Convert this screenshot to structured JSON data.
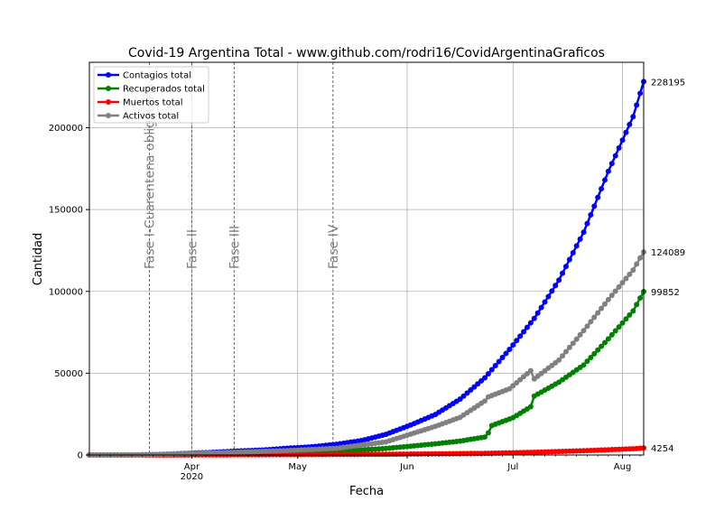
{
  "chart_data": {
    "type": "line",
    "title": "Covid-19 Argentina Total - www.github.com/rodri16/CovidArgentinaGraficos",
    "xlabel": "Fecha",
    "ylabel": "Cantidad",
    "x_start": "2020-03-03",
    "x_end": "2020-08-07",
    "ylim": [
      0,
      240000
    ],
    "grid": true,
    "legend_position": "top-left",
    "yticks": [
      {
        "value": 0,
        "label": "0"
      },
      {
        "value": 50000,
        "label": "50000"
      },
      {
        "value": 100000,
        "label": "100000"
      },
      {
        "value": 150000,
        "label": "150000"
      },
      {
        "value": 200000,
        "label": "200000"
      }
    ],
    "xticks": [
      {
        "date": "2020-04-01",
        "label": "Apr",
        "sublabel": "2020"
      },
      {
        "date": "2020-05-01",
        "label": "May",
        "sublabel": ""
      },
      {
        "date": "2020-06-01",
        "label": "Jun",
        "sublabel": ""
      },
      {
        "date": "2020-07-01",
        "label": "Jul",
        "sublabel": ""
      },
      {
        "date": "2020-08-01",
        "label": "Aug",
        "sublabel": ""
      }
    ],
    "phases": [
      {
        "date": "2020-03-20",
        "label": "Fase I-Cuarentena obligatoria"
      },
      {
        "date": "2020-04-01",
        "label": "Fase II"
      },
      {
        "date": "2020-04-13",
        "label": "Fase III"
      },
      {
        "date": "2020-05-11",
        "label": "Fase IV"
      }
    ],
    "series": [
      {
        "name": "Contagios total",
        "color": "#0000ff",
        "end_label": "228195",
        "points": [
          [
            "2020-03-03",
            1
          ],
          [
            "2020-03-10",
            17
          ],
          [
            "2020-03-17",
            65
          ],
          [
            "2020-03-24",
            387
          ],
          [
            "2020-03-31",
            1054
          ],
          [
            "2020-04-07",
            1628
          ],
          [
            "2020-04-14",
            2443
          ],
          [
            "2020-04-21",
            3031
          ],
          [
            "2020-04-28",
            4127
          ],
          [
            "2020-05-05",
            5020
          ],
          [
            "2020-05-12",
            6563
          ],
          [
            "2020-05-19",
            8796
          ],
          [
            "2020-05-26",
            12628
          ],
          [
            "2020-06-02",
            18319
          ],
          [
            "2020-06-09",
            24761
          ],
          [
            "2020-06-16",
            34159
          ],
          [
            "2020-06-23",
            47203
          ],
          [
            "2020-06-30",
            64530
          ],
          [
            "2020-07-07",
            83426
          ],
          [
            "2020-07-14",
            106910
          ],
          [
            "2020-07-21",
            136118
          ],
          [
            "2020-07-28",
            173355
          ],
          [
            "2020-08-04",
            206743
          ],
          [
            "2020-08-07",
            228195
          ]
        ]
      },
      {
        "name": "Recuperados total",
        "color": "#008000",
        "end_label": "99852",
        "points": [
          [
            "2020-03-03",
            0
          ],
          [
            "2020-03-17",
            0
          ],
          [
            "2020-03-31",
            200
          ],
          [
            "2020-04-14",
            600
          ],
          [
            "2020-04-28",
            1200
          ],
          [
            "2020-05-12",
            2200
          ],
          [
            "2020-05-26",
            4000
          ],
          [
            "2020-06-09",
            6800
          ],
          [
            "2020-06-16",
            8500
          ],
          [
            "2020-06-23",
            11000
          ],
          [
            "2020-06-24",
            13500
          ],
          [
            "2020-06-25",
            18000
          ],
          [
            "2020-07-01",
            22800
          ],
          [
            "2020-07-06",
            29500
          ],
          [
            "2020-07-07",
            36000
          ],
          [
            "2020-07-14",
            44500
          ],
          [
            "2020-07-21",
            55000
          ],
          [
            "2020-07-28",
            71000
          ],
          [
            "2020-08-04",
            88000
          ],
          [
            "2020-08-07",
            99852
          ]
        ]
      },
      {
        "name": "Muertos total",
        "color": "#ff0000",
        "end_label": "4254",
        "points": [
          [
            "2020-03-03",
            0
          ],
          [
            "2020-03-31",
            27
          ],
          [
            "2020-04-28",
            207
          ],
          [
            "2020-05-26",
            445
          ],
          [
            "2020-06-23",
            1016
          ],
          [
            "2020-07-07",
            1644
          ],
          [
            "2020-07-21",
            2588
          ],
          [
            "2020-08-04",
            3813
          ],
          [
            "2020-08-07",
            4254
          ]
        ]
      },
      {
        "name": "Activos total",
        "color": "#808080",
        "end_label": "124089",
        "points": [
          [
            "2020-03-03",
            1
          ],
          [
            "2020-03-17",
            60
          ],
          [
            "2020-03-31",
            850
          ],
          [
            "2020-04-14",
            1700
          ],
          [
            "2020-04-28",
            2700
          ],
          [
            "2020-05-12",
            4100
          ],
          [
            "2020-05-26",
            8000
          ],
          [
            "2020-06-09",
            17500
          ],
          [
            "2020-06-16",
            23000
          ],
          [
            "2020-06-23",
            33000
          ],
          [
            "2020-06-24",
            35500
          ],
          [
            "2020-06-30",
            40500
          ],
          [
            "2020-07-06",
            51500
          ],
          [
            "2020-07-07",
            46500
          ],
          [
            "2020-07-14",
            58000
          ],
          [
            "2020-07-21",
            76000
          ],
          [
            "2020-07-28",
            95000
          ],
          [
            "2020-08-04",
            113000
          ],
          [
            "2020-08-07",
            124089
          ]
        ]
      }
    ]
  }
}
